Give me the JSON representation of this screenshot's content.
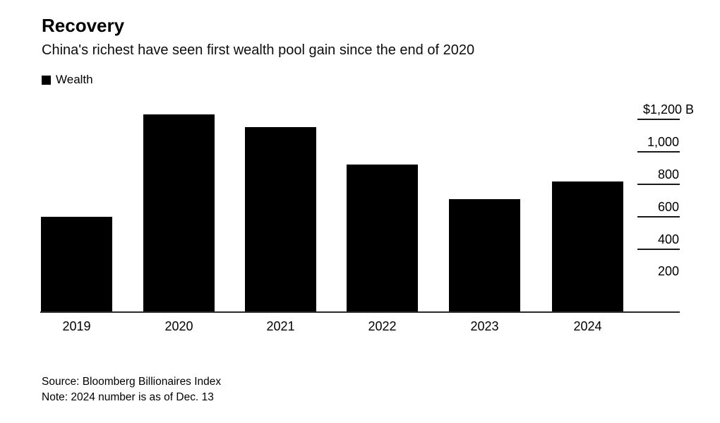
{
  "header": {
    "title": "Recovery",
    "subtitle": "China's richest have seen first wealth pool gain since the end of 2020"
  },
  "legend": {
    "label": "Wealth",
    "swatch_color": "#000000"
  },
  "chart_data": {
    "type": "bar",
    "title": "Recovery",
    "subtitle": "China's richest have seen first wealth pool gain since the end of 2020",
    "series_name": "Wealth",
    "categories": [
      "2019",
      "2020",
      "2021",
      "2022",
      "2023",
      "2024"
    ],
    "values": [
      590,
      1225,
      1145,
      915,
      700,
      810
    ],
    "unit": "$B",
    "ylim": [
      0,
      1260
    ],
    "y_ticks": [
      1200,
      1000,
      800,
      600,
      400,
      200
    ],
    "y_tick_labels": [
      "$1,200 B",
      "1,000",
      "800",
      "600",
      "400",
      "200"
    ],
    "y_axis_side": "right",
    "grid": "short tick rules beside right-hand labels only",
    "legend_position": "top-left",
    "bar_color": "#000000"
  },
  "footer": {
    "source": "Source: Bloomberg Billionaires Index",
    "note": "Note: 2024 number is as of Dec. 13"
  }
}
